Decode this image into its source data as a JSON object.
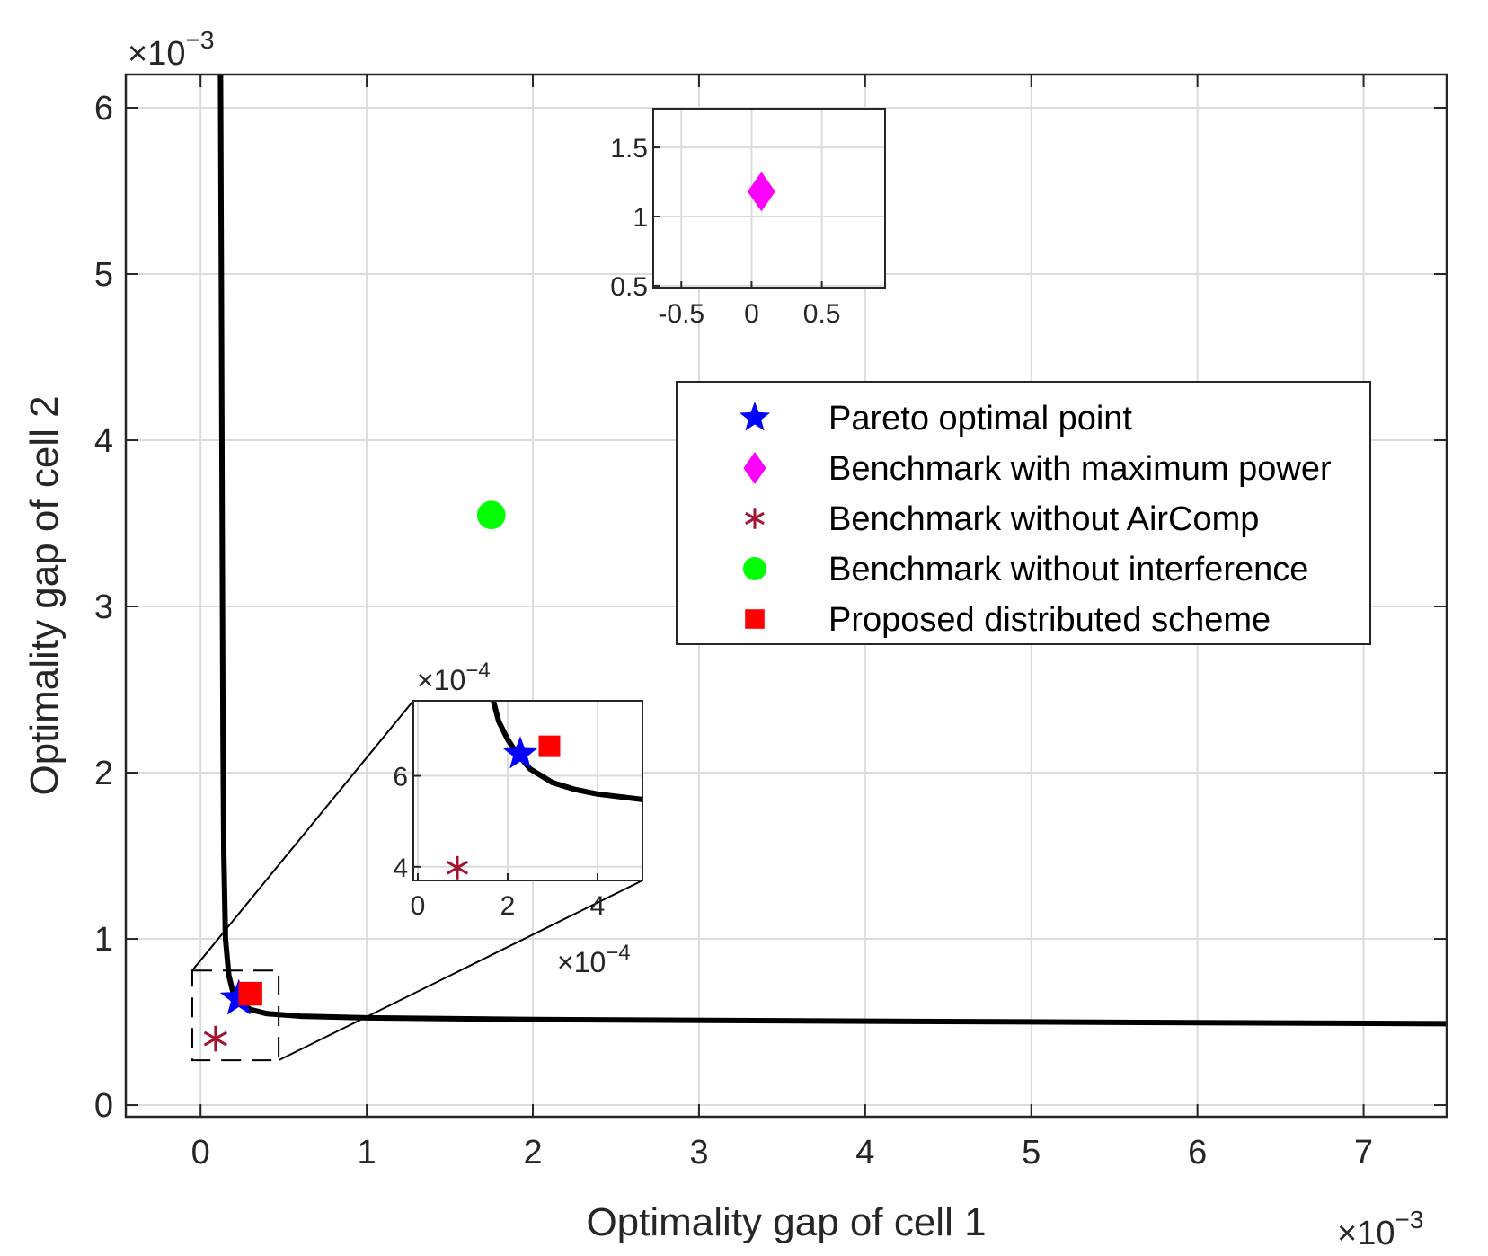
{
  "chart_data": {
    "type": "scatter",
    "main": {
      "xlabel": "Optimality gap of cell 1",
      "ylabel": "Optimality gap of cell 2",
      "x_exponent_label": "×10",
      "x_exponent": "−3",
      "y_exponent_label": "×10",
      "y_exponent": "−3",
      "xlim": [
        -0.45,
        7.5
      ],
      "ylim": [
        -0.07,
        6.2
      ],
      "xticks": [
        0,
        1,
        2,
        3,
        4,
        5,
        6,
        7
      ],
      "yticks": [
        0,
        1,
        2,
        3,
        4,
        5,
        6
      ],
      "grid": true,
      "pareto_curve": {
        "name": "Pareto boundary",
        "color": "#000000",
        "x": [
          0.12,
          0.125,
          0.13,
          0.135,
          0.14,
          0.15,
          0.17,
          0.2,
          0.25,
          0.3,
          0.4,
          0.6,
          1.0,
          2.0,
          4.0,
          7.5
        ],
        "y": [
          6.2,
          5.0,
          3.5,
          2.2,
          1.5,
          1.0,
          0.78,
          0.66,
          0.61,
          0.575,
          0.55,
          0.535,
          0.525,
          0.515,
          0.505,
          0.49
        ]
      },
      "points": [
        {
          "name": "Pareto optimal point",
          "marker": "star",
          "color": "#0000ff",
          "x": 0.23,
          "y": 0.64
        },
        {
          "name": "Benchmark without AirComp",
          "marker": "asterisk",
          "color": "#a2142f",
          "x": 0.09,
          "y": 0.4
        },
        {
          "name": "Benchmark without interference",
          "marker": "circle",
          "color": "#00ff00",
          "x": 1.75,
          "y": 3.55
        },
        {
          "name": "Proposed distributed scheme",
          "marker": "square",
          "color": "#ff0000",
          "x": 0.3,
          "y": 0.67
        }
      ]
    },
    "inset_top": {
      "xlim": [
        -0.7,
        0.95
      ],
      "ylim": [
        0.48,
        1.78
      ],
      "xticks": [
        -0.5,
        0,
        0.5
      ],
      "yticks": [
        0.5,
        1,
        1.5
      ],
      "xtick_labels": [
        "-0.5",
        "0",
        "0.5"
      ],
      "ytick_labels": [
        "0.5",
        "1",
        "1.5"
      ],
      "points": [
        {
          "name": "Benchmark with maximum power",
          "marker": "diamond",
          "color": "#ff00ff",
          "x": 0.07,
          "y": 1.18
        }
      ]
    },
    "inset_zoom": {
      "x_exponent_label": "×10",
      "x_exponent": "−4",
      "y_exponent_label": "×10",
      "y_exponent": "−4",
      "xlim": [
        -0.1,
        5.0
      ],
      "ylim": [
        3.7,
        7.65
      ],
      "xticks": [
        0,
        2,
        4
      ],
      "yticks": [
        4,
        6
      ],
      "zoom_box_main_units": {
        "x0": -0.05,
        "x1": 0.47,
        "y0": 0.27,
        "y1": 0.81
      },
      "curve": {
        "x": [
          1.68,
          1.8,
          2.0,
          2.2,
          2.5,
          3.0,
          3.5,
          4.0,
          5.0
        ],
        "y": [
          7.65,
          7.2,
          6.8,
          6.5,
          6.15,
          5.85,
          5.7,
          5.6,
          5.48
        ]
      },
      "points": [
        {
          "name": "Pareto optimal point",
          "marker": "star",
          "color": "#0000ff",
          "x": 2.28,
          "y": 6.48
        },
        {
          "name": "Proposed distributed scheme",
          "marker": "square",
          "color": "#ff0000",
          "x": 2.93,
          "y": 6.65
        },
        {
          "name": "Benchmark without AirComp",
          "marker": "asterisk",
          "color": "#a2142f",
          "x": 0.88,
          "y": 3.98
        }
      ]
    },
    "legend": {
      "placement": "upper-right",
      "entries": [
        {
          "label": "Pareto optimal point",
          "marker": "star",
          "color": "#0000ff"
        },
        {
          "label": "Benchmark with maximum power",
          "marker": "diamond",
          "color": "#ff00ff"
        },
        {
          "label": "Benchmark without AirComp",
          "marker": "asterisk",
          "color": "#a2142f"
        },
        {
          "label": "Benchmark without interference",
          "marker": "circle",
          "color": "#00ff00"
        },
        {
          "label": "Proposed distributed scheme",
          "marker": "square",
          "color": "#ff0000"
        }
      ]
    }
  }
}
